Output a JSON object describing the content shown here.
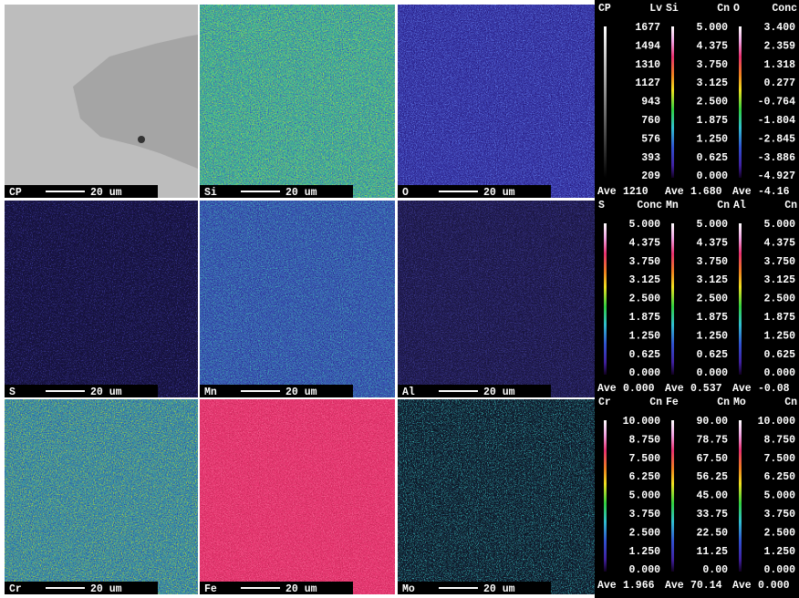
{
  "maps": [
    {
      "element": "CP",
      "scale_label": "20 um"
    },
    {
      "element": "Si",
      "scale_label": "20 um"
    },
    {
      "element": "O",
      "scale_label": "20 um"
    },
    {
      "element": "S",
      "scale_label": "20 um"
    },
    {
      "element": "Mn",
      "scale_label": "20 um"
    },
    {
      "element": "Al",
      "scale_label": "20 um"
    },
    {
      "element": "Cr",
      "scale_label": "20 um"
    },
    {
      "element": "Fe",
      "scale_label": "20 um"
    },
    {
      "element": "Mo",
      "scale_label": "20 um"
    }
  ],
  "ave_label": "Ave",
  "scales": [
    {
      "element": "CP",
      "unit": "Lv",
      "ticks": [
        "1677",
        "1494",
        "1310",
        "1127",
        "943",
        "760",
        "576",
        "393",
        "209"
      ],
      "ave": "1210"
    },
    {
      "element": "Si",
      "unit": "Cn",
      "ticks": [
        "5.000",
        "4.375",
        "3.750",
        "3.125",
        "2.500",
        "1.875",
        "1.250",
        "0.625",
        "0.000"
      ],
      "ave": "1.680"
    },
    {
      "element": "O",
      "unit": "Conc",
      "ticks": [
        "3.400",
        "2.359",
        "1.318",
        "0.277",
        "-0.764",
        "-1.804",
        "-2.845",
        "-3.886",
        "-4.927"
      ],
      "ave": "-4.16"
    },
    {
      "element": "S",
      "unit": "Conc",
      "ticks": [
        "5.000",
        "4.375",
        "3.750",
        "3.125",
        "2.500",
        "1.875",
        "1.250",
        "0.625",
        "0.000"
      ],
      "ave": "0.000"
    },
    {
      "element": "Mn",
      "unit": "Cn",
      "ticks": [
        "5.000",
        "4.375",
        "3.750",
        "3.125",
        "2.500",
        "1.875",
        "1.250",
        "0.625",
        "0.000"
      ],
      "ave": "0.537"
    },
    {
      "element": "Al",
      "unit": "Cn",
      "ticks": [
        "5.000",
        "4.375",
        "3.750",
        "3.125",
        "2.500",
        "1.875",
        "1.250",
        "0.625",
        "0.000"
      ],
      "ave": "-0.08"
    },
    {
      "element": "Cr",
      "unit": "Cn",
      "ticks": [
        "10.000",
        "8.750",
        "7.500",
        "6.250",
        "5.000",
        "3.750",
        "2.500",
        "1.250",
        "0.000"
      ],
      "ave": "1.966"
    },
    {
      "element": "Fe",
      "unit": "Cn",
      "ticks": [
        "90.00",
        "78.75",
        "67.50",
        "56.25",
        "45.00",
        "33.75",
        "22.50",
        "11.25",
        "0.00"
      ],
      "ave": "70.14"
    },
    {
      "element": "Mo",
      "unit": "Cn",
      "ticks": [
        "10.000",
        "8.750",
        "7.500",
        "6.250",
        "5.000",
        "3.750",
        "2.500",
        "1.250",
        "0.000"
      ],
      "ave": "0.000"
    }
  ]
}
